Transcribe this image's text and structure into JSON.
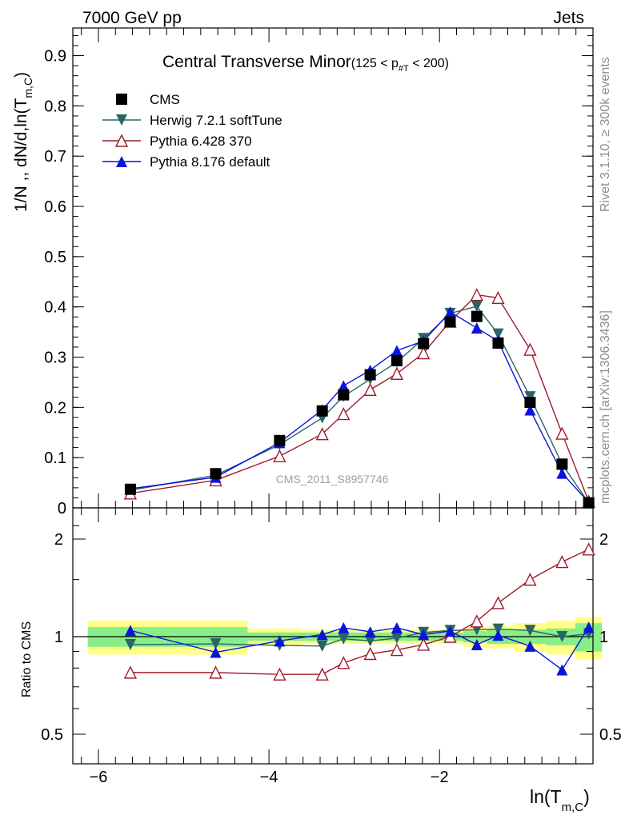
{
  "header": {
    "left": "7000 GeV pp",
    "right": "Jets"
  },
  "side_labels": {
    "rivet": "Rivet 3.1.10, ≥ 300k events",
    "mcplots": "mcplots.cern.ch [arXiv:1306.3436]"
  },
  "watermark": "CMS_2011_S8957746",
  "chart_data": [
    {
      "panel": "main",
      "type": "line",
      "title": "Central Transverse Minor",
      "title_range": "(125 < p",
      "title_sub": "#T",
      "title_range_end": " < 200)",
      "ylabel": "1/N ,, dN/d,ln(T",
      "ylabel_sub": "m,C",
      "ylabel_end": ")",
      "xlim": [
        -6.3,
        -0.2
      ],
      "ylim": [
        0,
        0.955
      ],
      "yticks": [
        0,
        0.1,
        0.2,
        0.3,
        0.4,
        0.5,
        0.6,
        0.7,
        0.8,
        0.9
      ],
      "ytick_labels": [
        "0",
        "0.1",
        "0.2",
        "0.3",
        "0.4",
        "0.5",
        "0.6",
        "0.7",
        "0.8",
        "0.9"
      ],
      "legend_position": "top-left",
      "x": [
        -5.625,
        -4.625,
        -3.875,
        -3.375,
        -3.125,
        -2.8125,
        -2.5,
        -2.1875,
        -1.875,
        -1.5625,
        -1.3125,
        -0.9375,
        -0.5625,
        -0.25
      ],
      "series": [
        {
          "name": "CMS",
          "color": "#000000",
          "marker": "square",
          "line": false,
          "values": [
            0.037,
            0.068,
            0.134,
            0.193,
            0.225,
            0.265,
            0.293,
            0.327,
            0.37,
            0.381,
            0.328,
            0.21,
            0.087,
            0.01
          ]
        },
        {
          "name": "Herwig 7.2.1 softTune",
          "color": "#2a6565",
          "marker": "triangle-down",
          "line": true,
          "values": [
            0.035,
            0.065,
            0.126,
            0.179,
            0.222,
            0.256,
            0.29,
            0.337,
            0.387,
            0.401,
            0.346,
            0.221,
            0.087,
            0.01
          ]
        },
        {
          "name": "Pythia 6.428 370",
          "color": "#a01c2c",
          "marker": "triangle-open",
          "line": true,
          "values": [
            0.029,
            0.055,
            0.103,
            0.147,
            0.187,
            0.235,
            0.267,
            0.308,
            0.371,
            0.424,
            0.418,
            0.315,
            0.148,
            0.013
          ]
        },
        {
          "name": "Pythia 8.176 default",
          "color": "#0a14dc",
          "marker": "triangle-up",
          "line": true,
          "values": [
            0.038,
            0.061,
            0.13,
            0.195,
            0.243,
            0.274,
            0.313,
            0.332,
            0.39,
            0.358,
            0.332,
            0.195,
            0.069,
            0.011
          ]
        }
      ]
    },
    {
      "panel": "ratio",
      "type": "line",
      "ylabel": "Ratio to CMS",
      "xlabel": "ln(T",
      "xlabel_sub": "m,C",
      "xlabel_end": ")",
      "xlim": [
        -6.3,
        -0.2
      ],
      "ylim": [
        0.0,
        2.3
      ],
      "yticks": [
        0.5,
        1,
        2
      ],
      "ytick_labels": [
        "0.5",
        "1",
        "2"
      ],
      "xticks": [
        -6,
        -4,
        -2
      ],
      "xtick_labels": [
        "−6",
        "−4",
        "−2"
      ],
      "x": [
        -5.625,
        -4.625,
        -3.875,
        -3.375,
        -3.125,
        -2.8125,
        -2.5,
        -2.1875,
        -1.875,
        -1.5625,
        -1.3125,
        -0.9375,
        -0.5625,
        -0.25
      ],
      "series": [
        {
          "name": "Herwig 7.2.1 softTune",
          "color": "#2a6565",
          "marker": "triangle-down",
          "values": [
            0.945,
            0.95,
            0.94,
            0.935,
            0.985,
            0.97,
            0.99,
            1.03,
            1.045,
            1.05,
            1.055,
            1.045,
            1.0,
            1.02
          ]
        },
        {
          "name": "Pythia 6.428 370",
          "color": "#a01c2c",
          "marker": "triangle-open",
          "values": [
            0.775,
            0.775,
            0.765,
            0.765,
            0.83,
            0.885,
            0.91,
            0.945,
            1.0,
            1.115,
            1.27,
            1.5,
            1.7,
            1.86
          ]
        },
        {
          "name": "Pythia 8.176 default",
          "color": "#0a14dc",
          "marker": "triangle-up",
          "values": [
            1.045,
            0.895,
            0.97,
            1.015,
            1.065,
            1.035,
            1.065,
            1.015,
            1.04,
            0.945,
            1.01,
            0.935,
            0.79,
            1.07
          ]
        }
      ],
      "band_inner_halfwidth": [
        0.07,
        0.07,
        0.03,
        0.03,
        0.03,
        0.03,
        0.03,
        0.03,
        0.03,
        0.04,
        0.05,
        0.05,
        0.06,
        0.1
      ],
      "band_outer_halfwidth": [
        0.12,
        0.12,
        0.06,
        0.05,
        0.05,
        0.05,
        0.05,
        0.05,
        0.05,
        0.07,
        0.08,
        0.1,
        0.12,
        0.15
      ],
      "band_color_inner": "#88ee88",
      "band_color_outer": "#ffff88"
    }
  ]
}
